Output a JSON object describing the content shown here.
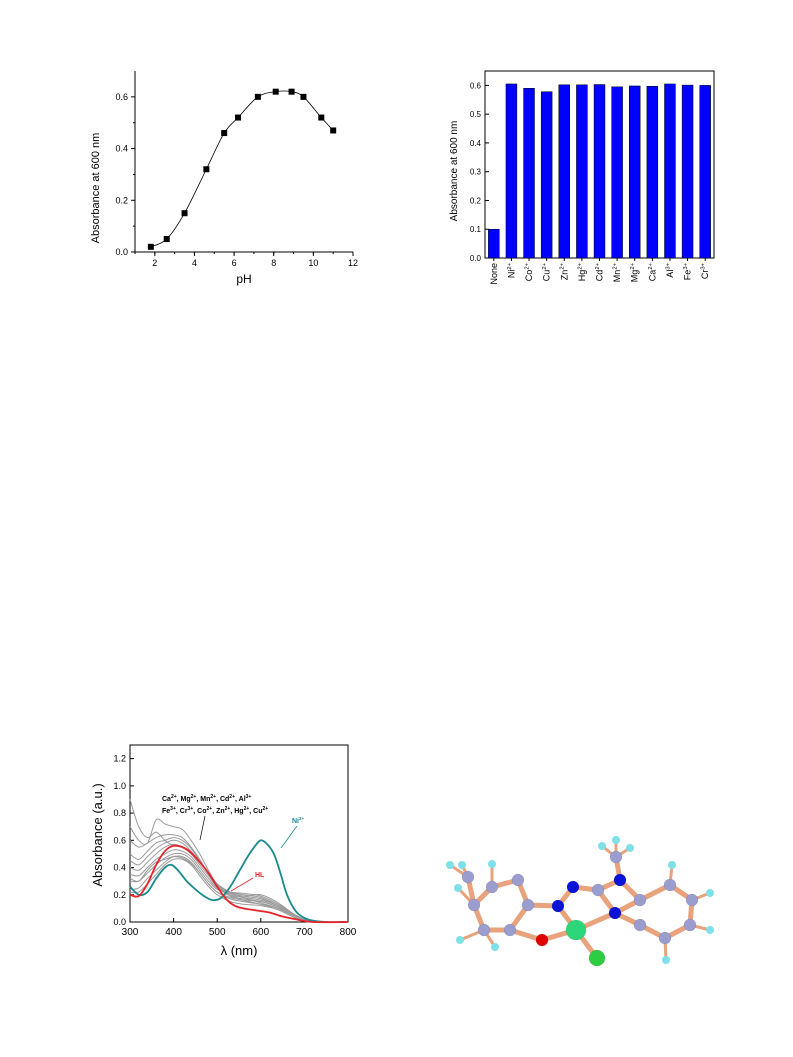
{
  "colors": {
    "bar_fill": "#0000ff",
    "hl_curve": "#e8232a",
    "ni_curve": "#1a8a8c",
    "metal_curves": "#9a9a9a",
    "atom_carbon": "#9b9dcf",
    "atom_nitrogen": "#0a14d6",
    "atom_oxygen": "#e00000",
    "atom_hydrogen": "#7fe0e8",
    "atom_nickel": "#2ed67a",
    "atom_chlorine": "#2ecc40",
    "bond": "#e8a27c"
  },
  "chart_data": [
    {
      "type": "scatter",
      "xlabel": "pH",
      "ylabel": "Absorbance at 600 nm",
      "xlim": [
        1,
        12
      ],
      "ylim": [
        0.0,
        0.7
      ],
      "x_ticks": [
        "2",
        "4",
        "6",
        "8",
        "10",
        "12"
      ],
      "y_ticks": [
        "0.0",
        "0.2",
        "0.4",
        "0.6"
      ],
      "x": [
        1.8,
        2.6,
        3.5,
        4.6,
        5.5,
        6.2,
        7.2,
        8.1,
        8.9,
        9.5,
        10.4,
        11.0
      ],
      "y": [
        0.02,
        0.05,
        0.15,
        0.32,
        0.46,
        0.52,
        0.6,
        0.62,
        0.62,
        0.6,
        0.52,
        0.47
      ],
      "fit_line": true
    },
    {
      "type": "bar",
      "ylabel": "Absorbance at 600 nm",
      "ylim": [
        0.0,
        0.65
      ],
      "y_ticks": [
        "0.0",
        "0.1",
        "0.2",
        "0.3",
        "0.4",
        "0.5",
        "0.6"
      ],
      "categories": [
        {
          "base": "None",
          "sup": ""
        },
        {
          "base": "Ni",
          "sup": "2+"
        },
        {
          "base": "Co",
          "sup": "2+"
        },
        {
          "base": "Cu",
          "sup": "2+"
        },
        {
          "base": "Zn",
          "sup": "2+"
        },
        {
          "base": "Hg",
          "sup": "2+"
        },
        {
          "base": "Cd",
          "sup": "2+"
        },
        {
          "base": "Mn",
          "sup": "2+"
        },
        {
          "base": "Mg",
          "sup": "2+"
        },
        {
          "base": "Ca",
          "sup": "2+"
        },
        {
          "base": "Al",
          "sup": "3+"
        },
        {
          "base": "Fe",
          "sup": "3+"
        },
        {
          "base": "Cr",
          "sup": "3+"
        }
      ],
      "values": [
        0.1,
        0.605,
        0.59,
        0.578,
        0.602,
        0.602,
        0.603,
        0.595,
        0.598,
        0.597,
        0.605,
        0.601,
        0.6
      ]
    },
    {
      "type": "line",
      "xlabel": "λ (nm)",
      "ylabel": "Absorbance (a.u.)",
      "xlim": [
        300,
        800
      ],
      "ylim": [
        0.0,
        1.3
      ],
      "x_ticks": [
        "300",
        "400",
        "500",
        "600",
        "700",
        "800"
      ],
      "y_ticks": [
        "0.0",
        "0.2",
        "0.4",
        "0.6",
        "0.8",
        "1.0",
        "1.2"
      ],
      "series_labels": {
        "hl": "HL",
        "ni": "Ni",
        "ni_sup": "2+",
        "metals_line1": [
          {
            "base": "Ca",
            "sup": "2+",
            "sep": ", "
          },
          {
            "base": "Mg",
            "sup": "2+",
            "sep": ", "
          },
          {
            "base": "Mn",
            "sup": "2+",
            "sep": ", "
          },
          {
            "base": "Cd",
            "sup": "2+",
            "sep": ", "
          },
          {
            "base": "Al",
            "sup": "3+",
            "sep": ""
          }
        ],
        "metals_line2": [
          {
            "base": "Fe",
            "sup": "3+",
            "sep": ", "
          },
          {
            "base": "Cr",
            "sup": "3+",
            "sep": ", "
          },
          {
            "base": "Co",
            "sup": "2+",
            "sep": ", "
          },
          {
            "base": "Zn",
            "sup": "2+",
            "sep": ", "
          },
          {
            "base": "Hg",
            "sup": "2+",
            "sep": ", "
          },
          {
            "base": "Cu",
            "sup": "2+",
            "sep": ""
          }
        ]
      },
      "series": [
        {
          "key": "ni",
          "x": [
            300,
            320,
            340,
            360,
            380,
            395,
            410,
            430,
            450,
            470,
            490,
            510,
            530,
            550,
            570,
            585,
            600,
            615,
            630,
            645,
            660,
            680,
            700,
            720,
            750,
            800
          ],
          "y": [
            0.26,
            0.2,
            0.22,
            0.32,
            0.4,
            0.42,
            0.38,
            0.3,
            0.24,
            0.19,
            0.16,
            0.18,
            0.26,
            0.37,
            0.48,
            0.55,
            0.6,
            0.57,
            0.5,
            0.36,
            0.2,
            0.08,
            0.03,
            0.01,
            0.0,
            0.0
          ]
        },
        {
          "key": "hl",
          "x": [
            300,
            320,
            340,
            360,
            380,
            400,
            420,
            440,
            460,
            480,
            500,
            520,
            540,
            560,
            580,
            600,
            620,
            650,
            680,
            720,
            800
          ],
          "y": [
            0.2,
            0.19,
            0.28,
            0.42,
            0.52,
            0.56,
            0.55,
            0.51,
            0.44,
            0.36,
            0.26,
            0.17,
            0.12,
            0.1,
            0.09,
            0.08,
            0.07,
            0.04,
            0.02,
            0.0,
            0.0
          ]
        },
        {
          "key": "metal",
          "x": [
            300,
            320,
            340,
            360,
            380,
            400,
            420,
            440,
            460,
            480,
            500,
            530,
            560,
            600,
            640,
            680,
            720,
            800
          ],
          "y": [
            0.9,
            0.7,
            0.62,
            0.66,
            0.6,
            0.56,
            0.55,
            0.5,
            0.44,
            0.36,
            0.28,
            0.2,
            0.16,
            0.13,
            0.09,
            0.03,
            0.0,
            0.0
          ]
        },
        {
          "key": "metal",
          "x": [
            300,
            320,
            340,
            360,
            380,
            400,
            420,
            440,
            460,
            480,
            500,
            530,
            560,
            600,
            640,
            680,
            720,
            800
          ],
          "y": [
            0.7,
            0.6,
            0.58,
            0.75,
            0.72,
            0.7,
            0.68,
            0.6,
            0.5,
            0.38,
            0.28,
            0.22,
            0.18,
            0.14,
            0.1,
            0.04,
            0.0,
            0.0
          ]
        },
        {
          "key": "metal",
          "x": [
            300,
            320,
            340,
            360,
            380,
            400,
            420,
            440,
            460,
            480,
            500,
            530,
            560,
            600,
            640,
            680,
            720,
            800
          ],
          "y": [
            0.6,
            0.55,
            0.58,
            0.62,
            0.64,
            0.64,
            0.62,
            0.55,
            0.46,
            0.35,
            0.26,
            0.19,
            0.17,
            0.15,
            0.11,
            0.04,
            0.0,
            0.0
          ]
        },
        {
          "key": "metal",
          "x": [
            300,
            320,
            340,
            360,
            380,
            400,
            420,
            440,
            460,
            480,
            500,
            530,
            560,
            600,
            640,
            680,
            720,
            800
          ],
          "y": [
            0.45,
            0.42,
            0.48,
            0.54,
            0.58,
            0.6,
            0.58,
            0.52,
            0.44,
            0.36,
            0.26,
            0.2,
            0.18,
            0.16,
            0.12,
            0.05,
            0.0,
            0.0
          ]
        },
        {
          "key": "metal",
          "x": [
            300,
            320,
            340,
            360,
            380,
            400,
            420,
            440,
            460,
            480,
            500,
            530,
            560,
            600,
            640,
            680,
            720,
            800
          ],
          "y": [
            0.4,
            0.38,
            0.44,
            0.5,
            0.55,
            0.57,
            0.55,
            0.5,
            0.42,
            0.34,
            0.26,
            0.22,
            0.2,
            0.18,
            0.12,
            0.05,
            0.0,
            0.0
          ]
        },
        {
          "key": "metal",
          "x": [
            300,
            320,
            340,
            360,
            380,
            400,
            420,
            440,
            460,
            480,
            500,
            530,
            560,
            600,
            640,
            680,
            720,
            800
          ],
          "y": [
            0.35,
            0.34,
            0.4,
            0.46,
            0.5,
            0.53,
            0.52,
            0.48,
            0.4,
            0.32,
            0.25,
            0.22,
            0.21,
            0.19,
            0.13,
            0.05,
            0.0,
            0.0
          ]
        },
        {
          "key": "metal",
          "x": [
            300,
            320,
            340,
            360,
            380,
            400,
            420,
            440,
            460,
            480,
            500,
            530,
            560,
            600,
            640,
            680,
            720,
            800
          ],
          "y": [
            0.3,
            0.3,
            0.36,
            0.42,
            0.47,
            0.5,
            0.5,
            0.46,
            0.38,
            0.3,
            0.24,
            0.21,
            0.19,
            0.17,
            0.12,
            0.05,
            0.0,
            0.0
          ]
        },
        {
          "key": "metal",
          "x": [
            300,
            320,
            340,
            360,
            380,
            400,
            420,
            440,
            460,
            480,
            500,
            530,
            560,
            600,
            640,
            680,
            720,
            800
          ],
          "y": [
            0.24,
            0.25,
            0.32,
            0.38,
            0.44,
            0.48,
            0.48,
            0.44,
            0.36,
            0.28,
            0.22,
            0.18,
            0.16,
            0.15,
            0.11,
            0.04,
            0.0,
            0.0
          ]
        },
        {
          "key": "metal",
          "x": [
            300,
            320,
            340,
            360,
            380,
            400,
            420,
            440,
            460,
            480,
            500,
            530,
            560,
            600,
            640,
            680,
            720,
            800
          ],
          "y": [
            0.22,
            0.22,
            0.28,
            0.35,
            0.42,
            0.46,
            0.46,
            0.42,
            0.34,
            0.26,
            0.2,
            0.15,
            0.13,
            0.12,
            0.09,
            0.03,
            0.0,
            0.0
          ]
        },
        {
          "key": "metal",
          "x": [
            300,
            320,
            340,
            360,
            380,
            400,
            420,
            440,
            460,
            480,
            500,
            530,
            560,
            600,
            640,
            680,
            720,
            800
          ],
          "y": [
            0.5,
            0.46,
            0.52,
            0.58,
            0.6,
            0.62,
            0.6,
            0.54,
            0.45,
            0.36,
            0.27,
            0.21,
            0.19,
            0.2,
            0.14,
            0.05,
            0.0,
            0.0
          ]
        },
        {
          "key": "metal",
          "x": [
            300,
            320,
            340,
            360,
            380,
            400,
            420,
            440,
            460,
            480,
            500,
            530,
            560,
            600,
            640,
            680,
            720,
            800
          ],
          "y": [
            0.32,
            0.3,
            0.38,
            0.44,
            0.46,
            0.48,
            0.47,
            0.43,
            0.36,
            0.28,
            0.22,
            0.17,
            0.15,
            0.13,
            0.1,
            0.04,
            0.0,
            0.0
          ]
        }
      ]
    }
  ]
}
